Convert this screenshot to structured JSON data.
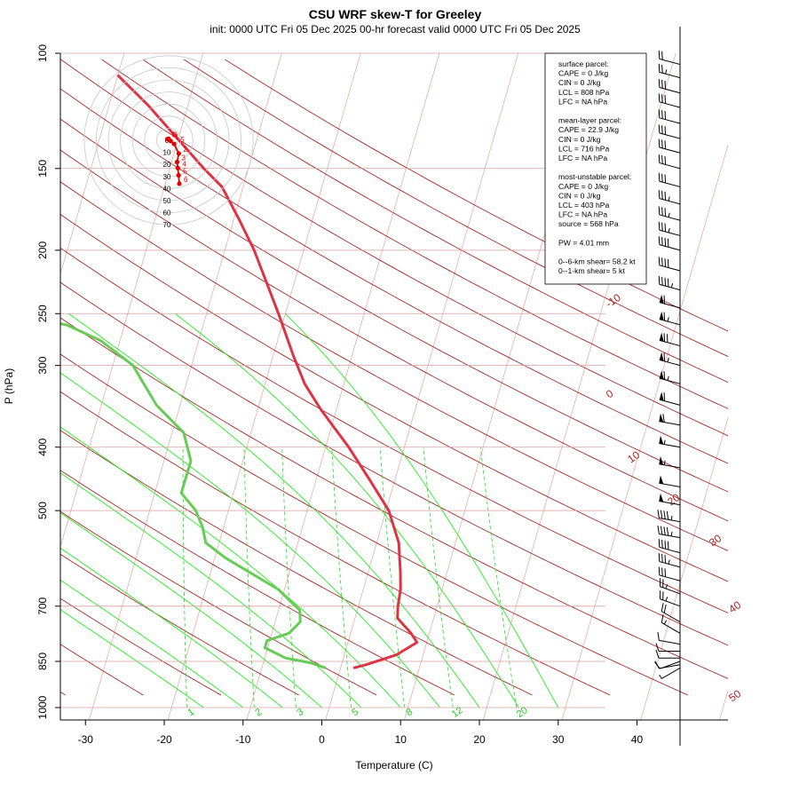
{
  "chart_data": {
    "type": "skew-T",
    "title": "CSU WRF skew-T for Greeley",
    "subtitle": "init: 0000 UTC Fri 05 Dec 2025    00-hr forecast valid 0000 UTC Fri 05 Dec 2025",
    "xlabel": "Temperature (C)",
    "ylabel": "P (hPa)",
    "xlim": [
      -33,
      45
    ],
    "ylim_hpa": [
      1000,
      100
    ],
    "y_scale": "log",
    "x_ticks": [
      -30,
      -20,
      -10,
      0,
      10,
      20,
      30,
      40
    ],
    "y_ticks": [
      100,
      150,
      200,
      250,
      300,
      400,
      500,
      700,
      850,
      1000
    ],
    "isotherm_labels": [
      {
        "t": -10,
        "text": "-10"
      },
      {
        "t": 0,
        "text": "0"
      },
      {
        "t": 10,
        "text": "10"
      },
      {
        "t": 20,
        "text": "20"
      },
      {
        "t": 30,
        "text": "30"
      },
      {
        "t": 40,
        "text": "40"
      },
      {
        "t": 50,
        "text": "50"
      }
    ],
    "mixing_ratio_labels": [
      "1",
      "2",
      "3",
      "5",
      "8",
      "12",
      "20"
    ],
    "series": [
      {
        "color": "#dd3344",
        "points": [
          {
            "p": 870,
            "t": 2.5
          },
          {
            "p": 860,
            "t": 4.0
          },
          {
            "p": 830,
            "t": 7.5
          },
          {
            "p": 795,
            "t": 9.6
          },
          {
            "p": 770,
            "t": 8.5
          },
          {
            "p": 730,
            "t": 6.2
          },
          {
            "p": 700,
            "t": 5.8
          },
          {
            "p": 660,
            "t": 5.5
          },
          {
            "p": 620,
            "t": 4.8
          },
          {
            "p": 560,
            "t": 3.5
          },
          {
            "p": 500,
            "t": 1.0
          },
          {
            "p": 450,
            "t": -2.5
          },
          {
            "p": 400,
            "t": -6.5
          },
          {
            "p": 350,
            "t": -11.5
          },
          {
            "p": 320,
            "t": -14.5
          },
          {
            "p": 290,
            "t": -17.0
          },
          {
            "p": 250,
            "t": -20.5
          },
          {
            "p": 200,
            "t": -26.0
          },
          {
            "p": 180,
            "t": -29.0
          },
          {
            "p": 160,
            "t": -32.5
          },
          {
            "p": 150,
            "t": -35.5
          },
          {
            "p": 120,
            "t": -45.0
          },
          {
            "p": 108,
            "t": -50.0
          }
        ]
      },
      {
        "color": "#66cc55",
        "points": [
          {
            "p": 870,
            "t": -1.0
          },
          {
            "p": 855,
            "t": -3.0
          },
          {
            "p": 840,
            "t": -6.5
          },
          {
            "p": 810,
            "t": -9.5
          },
          {
            "p": 790,
            "t": -9.5
          },
          {
            "p": 770,
            "t": -7.0
          },
          {
            "p": 740,
            "t": -6.0
          },
          {
            "p": 710,
            "t": -6.5
          },
          {
            "p": 660,
            "t": -10.0
          },
          {
            "p": 590,
            "t": -18.0
          },
          {
            "p": 560,
            "t": -21.0
          },
          {
            "p": 530,
            "t": -22.0
          },
          {
            "p": 500,
            "t": -23.5
          },
          {
            "p": 470,
            "t": -26.0
          },
          {
            "p": 420,
            "t": -26.0
          },
          {
            "p": 380,
            "t": -28.0
          },
          {
            "p": 345,
            "t": -32.5
          },
          {
            "p": 300,
            "t": -37.0
          },
          {
            "p": 275,
            "t": -42.0
          },
          {
            "p": 260,
            "t": -47.0
          },
          {
            "p": 235,
            "t": -70.0
          },
          {
            "p": 215,
            "t": -70.0
          },
          {
            "p": 200,
            "t": -67.5
          },
          {
            "p": 185,
            "t": -60.0
          },
          {
            "p": 175,
            "t": -60.0
          },
          {
            "p": 165,
            "t": -60.0
          }
        ]
      }
    ],
    "hodograph": {
      "ring_labels": [
        "0",
        "10",
        "20",
        "30",
        "40",
        "50",
        "60",
        "70"
      ],
      "points": [
        {
          "u": -0.5,
          "v": 0.5,
          "label": "0"
        },
        {
          "u": 0.0,
          "v": 0.6,
          "label": "0"
        },
        {
          "u": 0.8,
          "v": -0.3,
          "label": "1"
        },
        {
          "u": 2.2,
          "v": -1.5,
          "label": ".5"
        },
        {
          "u": 4.2,
          "v": -5.5,
          "label": "2"
        },
        {
          "u": 3.5,
          "v": -9.0,
          "label": "3"
        },
        {
          "u": 3.8,
          "v": -11.5,
          "label": "4"
        },
        {
          "u": 4.1,
          "v": -14.5,
          "label": "5"
        },
        {
          "u": 4.4,
          "v": -18.0,
          "label": "6"
        }
      ]
    },
    "wind_barbs": [
      {
        "p": 870,
        "dir": 240,
        "spd": 5
      },
      {
        "p": 860,
        "dir": 260,
        "spd": 10
      },
      {
        "p": 850,
        "dir": 250,
        "spd": 10
      },
      {
        "p": 840,
        "dir": 270,
        "spd": 10
      },
      {
        "p": 820,
        "dir": 270,
        "spd": 10
      },
      {
        "p": 800,
        "dir": 280,
        "spd": 10
      },
      {
        "p": 770,
        "dir": 300,
        "spd": 15
      },
      {
        "p": 740,
        "dir": 300,
        "spd": 20
      },
      {
        "p": 700,
        "dir": 290,
        "spd": 25
      },
      {
        "p": 670,
        "dir": 290,
        "spd": 25
      },
      {
        "p": 640,
        "dir": 285,
        "spd": 30
      },
      {
        "p": 610,
        "dir": 285,
        "spd": 35
      },
      {
        "p": 580,
        "dir": 285,
        "spd": 40
      },
      {
        "p": 550,
        "dir": 280,
        "spd": 45
      },
      {
        "p": 520,
        "dir": 280,
        "spd": 45
      },
      {
        "p": 490,
        "dir": 280,
        "spd": 50
      },
      {
        "p": 460,
        "dir": 280,
        "spd": 50
      },
      {
        "p": 430,
        "dir": 280,
        "spd": 55
      },
      {
        "p": 400,
        "dir": 280,
        "spd": 55
      },
      {
        "p": 370,
        "dir": 280,
        "spd": 60
      },
      {
        "p": 345,
        "dir": 285,
        "spd": 60
      },
      {
        "p": 320,
        "dir": 285,
        "spd": 65
      },
      {
        "p": 300,
        "dir": 285,
        "spd": 65
      },
      {
        "p": 280,
        "dir": 285,
        "spd": 70
      },
      {
        "p": 260,
        "dir": 285,
        "spd": 65
      },
      {
        "p": 245,
        "dir": 285,
        "spd": 60
      },
      {
        "p": 230,
        "dir": 285,
        "spd": 45
      },
      {
        "p": 215,
        "dir": 285,
        "spd": 40
      },
      {
        "p": 200,
        "dir": 285,
        "spd": 40
      },
      {
        "p": 190,
        "dir": 285,
        "spd": 35
      },
      {
        "p": 180,
        "dir": 285,
        "spd": 35
      },
      {
        "p": 170,
        "dir": 285,
        "spd": 35
      },
      {
        "p": 160,
        "dir": 285,
        "spd": 30
      },
      {
        "p": 150,
        "dir": 285,
        "spd": 30
      },
      {
        "p": 142,
        "dir": 285,
        "spd": 30
      },
      {
        "p": 135,
        "dir": 285,
        "spd": 30
      },
      {
        "p": 128,
        "dir": 285,
        "spd": 30
      },
      {
        "p": 121,
        "dir": 285,
        "spd": 30
      },
      {
        "p": 115,
        "dir": 285,
        "spd": 30
      },
      {
        "p": 109,
        "dir": 285,
        "spd": 25
      },
      {
        "p": 104,
        "dir": 285,
        "spd": 20
      }
    ],
    "info_box": [
      "surface parcel:",
      "CAPE = 0 J/kg",
      "CIN = 0 J/kg",
      "LCL = 808 hPa",
      "LFC = NA hPa",
      "",
      "mean-layer parcel:",
      "CAPE = 22.9 J/kg",
      "CIN = 0 J/kg",
      "LCL = 716 hPa",
      "LFC = NA hPa",
      "",
      "most-unstable parcel:",
      "CAPE = 0 J/kg",
      "CIN = 0 J/kg",
      "LCL = 403 hPa",
      "LFC = NA hPa",
      "source = 568 hPa",
      "",
      "PW =  4.01 mm",
      "",
      "0--6-km shear= 58.2 kt",
      "0--1-km shear= 5 kt"
    ],
    "colors": {
      "temperature": "#dd3344",
      "dewpoint": "#66cc55",
      "adiabat": "#a52a2a",
      "moist_adiabat": "#22ee22",
      "mixing_ratio": "#22dd22",
      "isotherm": "#e8a0a0",
      "hodograph": "#e00000"
    }
  }
}
